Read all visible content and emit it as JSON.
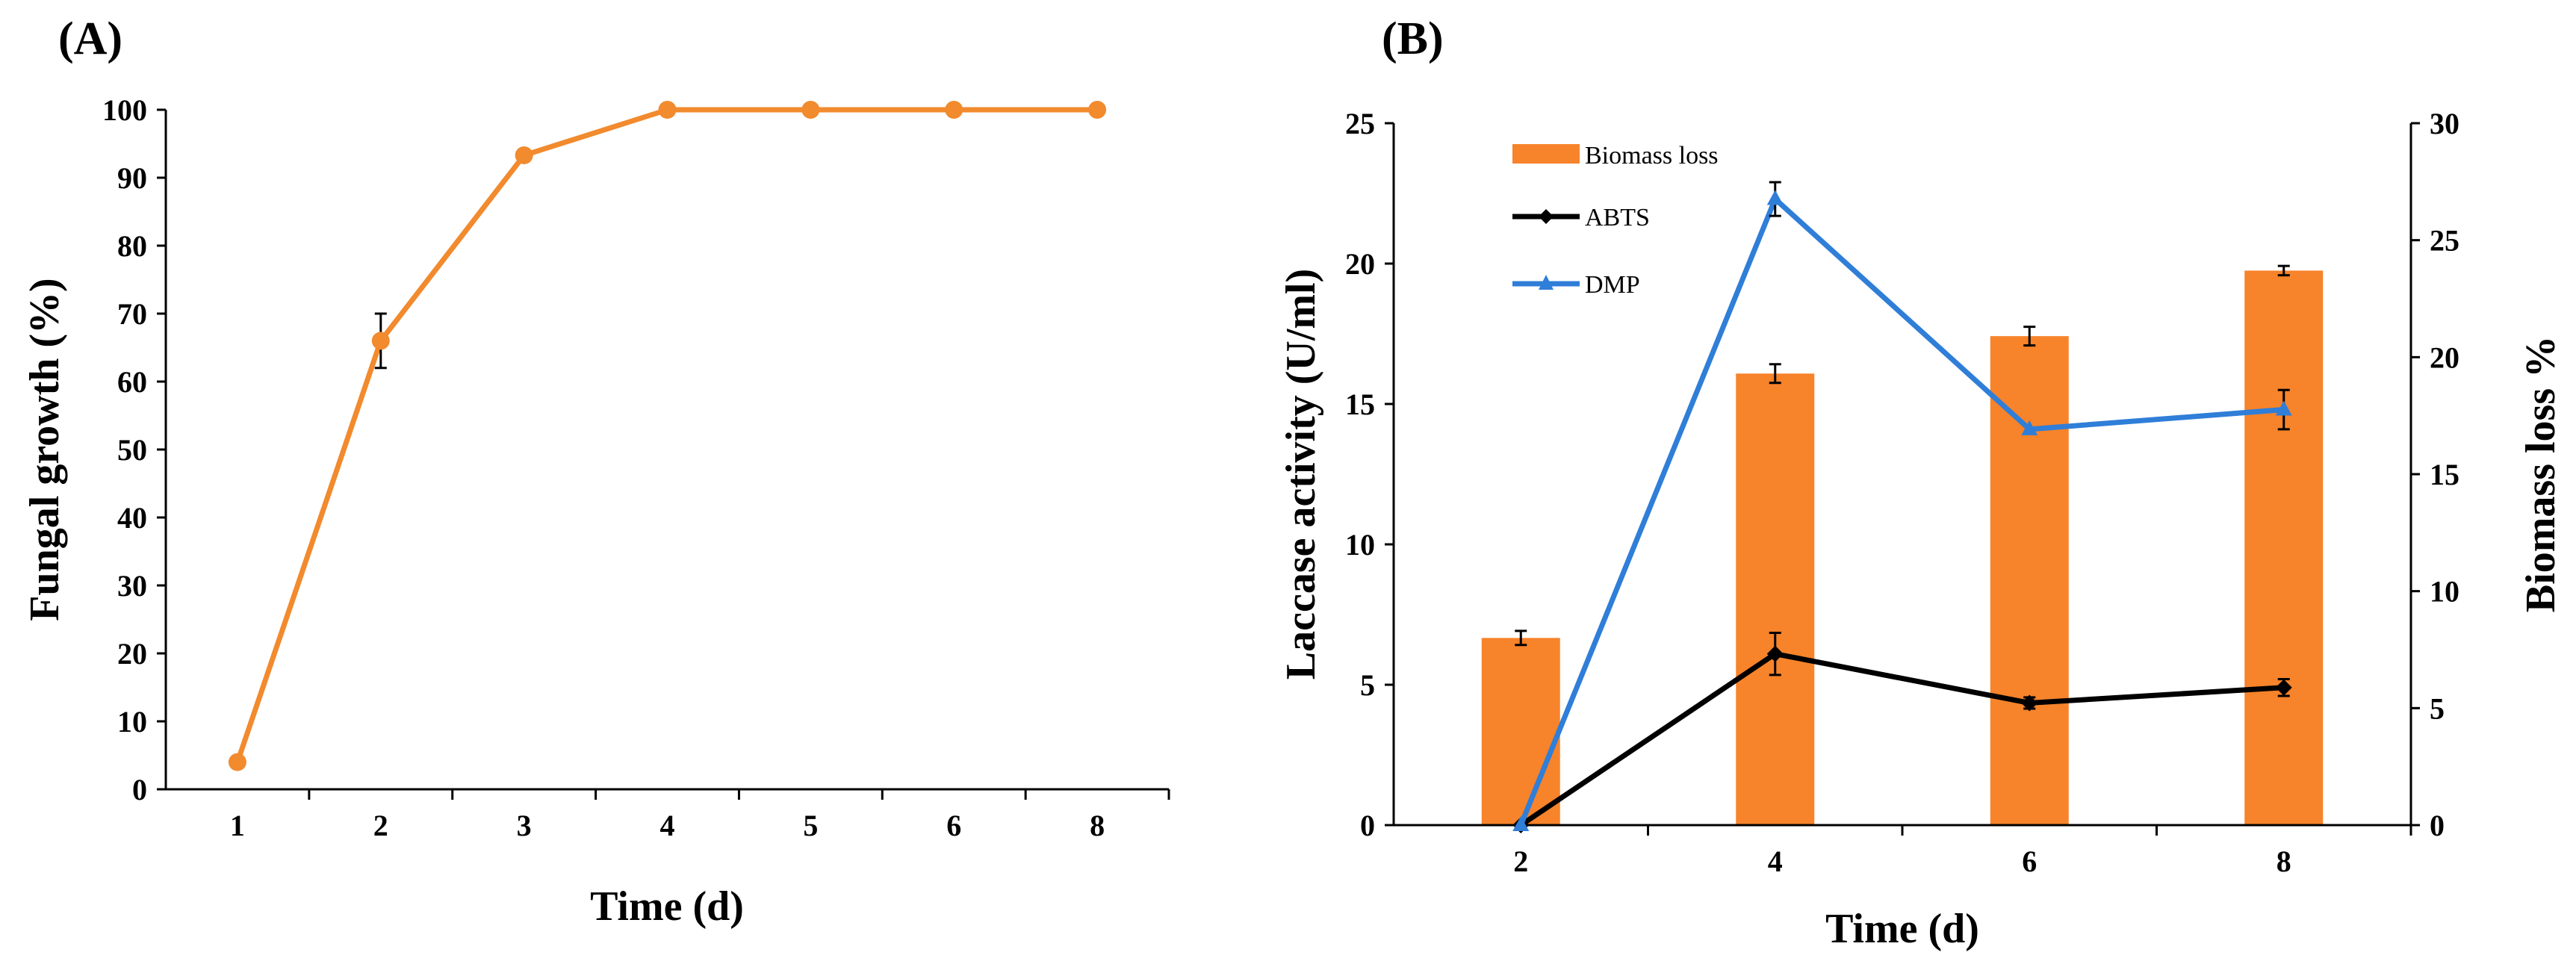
{
  "chart_data": [
    {
      "panel_label": "(A)",
      "type": "line",
      "categories": [
        "1",
        "2",
        "3",
        "4",
        "5",
        "6",
        "8"
      ],
      "series": [
        {
          "name": "Fungal growth",
          "color": "#f28a2e",
          "values": [
            4,
            66,
            93.3,
            100,
            100,
            100,
            100
          ],
          "errors": [
            0,
            4,
            0.5,
            0,
            0,
            0,
            0
          ]
        }
      ],
      "title": "",
      "xlabel": "Time (d)",
      "ylabel": "Fungal growth (%)",
      "ylim": [
        0,
        100
      ],
      "yticks": [
        "0",
        "10",
        "20",
        "30",
        "40",
        "50",
        "60",
        "70",
        "80",
        "90",
        "100"
      ],
      "grid": false
    },
    {
      "panel_label": "(B)",
      "type": "bar",
      "categories": [
        "2",
        "4",
        "6",
        "8"
      ],
      "bar_series": {
        "name": "Biomass loss",
        "color": "#f7832a",
        "axis": "right",
        "values": [
          8,
          19.3,
          20.9,
          23.7
        ],
        "errors": [
          0.3,
          0.4,
          0.4,
          0.2
        ]
      },
      "line_series": [
        {
          "name": "ABTS",
          "color": "#000000",
          "marker": "diamond",
          "axis": "left",
          "values": [
            0,
            6.1,
            4.35,
            4.9
          ],
          "errors": [
            0,
            0.75,
            0.2,
            0.3
          ]
        },
        {
          "name": "DMP",
          "color": "#2f7ed8",
          "marker": "triangle",
          "axis": "left",
          "values": [
            0,
            22.3,
            14.1,
            14.8
          ],
          "errors": [
            0,
            0.6,
            0,
            0.7
          ]
        }
      ],
      "title": "",
      "xlabel": "Time (d)",
      "ylabel": "Laccase activity (U/ml)",
      "y2label": "Biomass loss %",
      "ylim": [
        0,
        25
      ],
      "y2lim": [
        0,
        30
      ],
      "yticks": [
        "0",
        "5",
        "10",
        "15",
        "20",
        "25"
      ],
      "y2ticks": [
        "0",
        "5",
        "10",
        "15",
        "20",
        "25",
        "30"
      ],
      "legend_position": "top-left",
      "grid": false
    }
  ]
}
